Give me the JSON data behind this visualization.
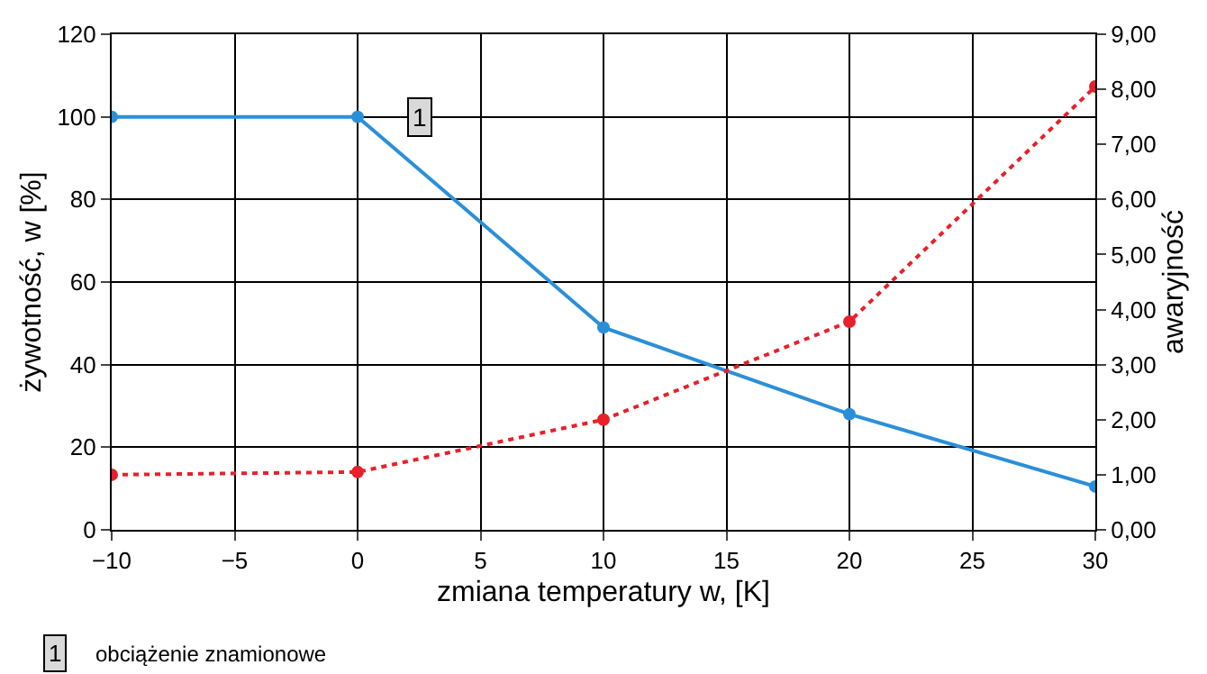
{
  "chart_data": {
    "type": "line",
    "xlabel": "zmiana temperatury w, [K]",
    "ylabel": "żywotność, w [%]",
    "y2label": "awaryjność",
    "x": [
      -10,
      0,
      10,
      20,
      30
    ],
    "series": [
      {
        "color": "#2b8fd8",
        "values": [
          100,
          100,
          49,
          28,
          10.5
        ],
        "line_style": "solid"
      },
      {
        "color": "#e8202a",
        "values": [
          1.0,
          1.05,
          2.0,
          3.78,
          8.05
        ],
        "axis": "y2",
        "line_style": "dotted"
      }
    ],
    "xlim": [
      -10,
      30
    ],
    "xticks": [
      {
        "value": -10,
        "label": "−10"
      },
      {
        "value": -5,
        "label": "−5"
      },
      0,
      5,
      10,
      15,
      20,
      25,
      30
    ],
    "ylim": [
      0,
      120
    ],
    "yticks": [
      0,
      20,
      40,
      60,
      80,
      100,
      120
    ],
    "y2lim": [
      0,
      9
    ],
    "y2ticks": [
      {
        "value": 0,
        "label": "0,00"
      },
      {
        "value": 1,
        "label": "1,00"
      },
      {
        "value": 2,
        "label": "2,00"
      },
      {
        "value": 3,
        "label": "3,00"
      },
      {
        "value": 4,
        "label": "4,00"
      },
      {
        "value": 5,
        "label": "5,00"
      },
      {
        "value": 6,
        "label": "6,00"
      },
      {
        "value": 7,
        "label": "7,00"
      },
      {
        "value": 8,
        "label": "8,00"
      },
      {
        "value": 9,
        "label": "9,00"
      }
    ],
    "annotations": [
      {
        "text": "1",
        "x": 2.5,
        "y": 100
      },
      "obciążenie znamionowe"
    ],
    "grid": true,
    "legend": false,
    "marker": "circle"
  }
}
